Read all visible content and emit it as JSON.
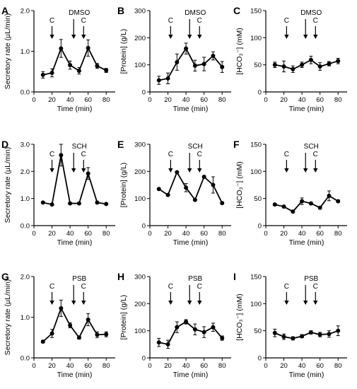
{
  "chart_data": [
    {
      "letter": "A",
      "type": "line",
      "treatment": "DMSO",
      "ylabel": "Secretory rate (µL/min)",
      "xlabel": "Time (min)",
      "ylim": [
        0,
        2.0
      ],
      "yticks": [
        "0.0",
        "1.0",
        "2.0"
      ],
      "ytickvals": [
        0,
        1,
        2
      ],
      "xlim": [
        0,
        90
      ],
      "xticks": [
        "0",
        "20",
        "40",
        "60",
        "80"
      ],
      "xtickvals": [
        0,
        20,
        40,
        60,
        80
      ],
      "x": [
        10,
        20,
        30,
        40,
        50,
        60,
        70,
        80
      ],
      "values": [
        0.42,
        0.47,
        1.07,
        0.66,
        0.52,
        1.08,
        0.64,
        0.53
      ],
      "errors": [
        0.08,
        0.1,
        0.22,
        0.1,
        0.08,
        0.2,
        0.06,
        0.05
      ],
      "c_labels": [
        "C",
        "C"
      ],
      "c_x": [
        20,
        55
      ],
      "treat_x": 44
    },
    {
      "letter": "B",
      "type": "line",
      "treatment": "DMSO",
      "ylabel": "[Protein] (g/L)",
      "xlabel": "Time (min)",
      "ylim": [
        0,
        300
      ],
      "yticks": [
        "0",
        "100",
        "200",
        "300"
      ],
      "ytickvals": [
        0,
        100,
        200,
        300
      ],
      "xlim": [
        0,
        90
      ],
      "xticks": [
        "0",
        "20",
        "40",
        "60",
        "80"
      ],
      "xtickvals": [
        0,
        20,
        40,
        60,
        80
      ],
      "x": [
        10,
        20,
        30,
        40,
        50,
        60,
        70,
        80
      ],
      "values": [
        43,
        50,
        110,
        160,
        97,
        103,
        133,
        92
      ],
      "errors": [
        15,
        20,
        30,
        20,
        20,
        25,
        15,
        20
      ],
      "c_labels": [
        "C",
        "C"
      ],
      "c_x": [
        23,
        55
      ],
      "treat_x": 44
    },
    {
      "letter": "C",
      "type": "line",
      "treatment": "DMSO",
      "ylabel": "[HCO₃⁻] (mM)",
      "xlabel": "Time (min)",
      "ylim": [
        0,
        150
      ],
      "yticks": [
        "0",
        "50",
        "100",
        "150"
      ],
      "ytickvals": [
        0,
        50,
        100,
        150
      ],
      "xlim": [
        0,
        90
      ],
      "xticks": [
        "0",
        "20",
        "40",
        "60",
        "80"
      ],
      "xtickvals": [
        0,
        20,
        40,
        60,
        80
      ],
      "x": [
        10,
        20,
        30,
        40,
        50,
        60,
        70,
        80
      ],
      "values": [
        50,
        47,
        42,
        50,
        59,
        47,
        52,
        57
      ],
      "errors": [
        5,
        10,
        6,
        5,
        7,
        7,
        4,
        5
      ],
      "c_labels": [
        "C",
        "C"
      ],
      "c_x": [
        23,
        55
      ],
      "treat_x": 44
    },
    {
      "letter": "D",
      "type": "line",
      "treatment": "SCH",
      "ylabel": "Secretory rate (µL/min)",
      "xlabel": "Time (min)",
      "ylim": [
        0,
        3.0
      ],
      "yticks": [
        "0.0",
        "1.0",
        "2.0",
        "3.0"
      ],
      "ytickvals": [
        0,
        1,
        2,
        3
      ],
      "xlim": [
        0,
        90
      ],
      "xticks": [
        "0",
        "20",
        "40",
        "60",
        "80"
      ],
      "xtickvals": [
        0,
        20,
        40,
        60,
        80
      ],
      "x": [
        10,
        20,
        30,
        40,
        50,
        60,
        70,
        80
      ],
      "values": [
        0.85,
        0.78,
        2.6,
        0.82,
        0.82,
        1.92,
        0.85,
        0.8
      ],
      "errors": [
        0.03,
        0.03,
        0.4,
        0.03,
        0.03,
        0.22,
        0.03,
        0.03
      ],
      "c_labels": [
        "C",
        "C"
      ],
      "c_x": [
        20,
        55
      ],
      "treat_x": 44
    },
    {
      "letter": "E",
      "type": "line",
      "treatment": "SCH",
      "ylabel": "[Protein] (g/L)",
      "xlabel": "Time (min)",
      "ylim": [
        0,
        300
      ],
      "yticks": [
        "0",
        "100",
        "200",
        "300"
      ],
      "ytickvals": [
        0,
        100,
        200,
        300
      ],
      "xlim": [
        0,
        90
      ],
      "xticks": [
        "0",
        "20",
        "40",
        "60",
        "80"
      ],
      "xtickvals": [
        0,
        20,
        40,
        60,
        80
      ],
      "x": [
        10,
        20,
        30,
        40,
        50,
        60,
        70,
        80
      ],
      "values": [
        135,
        113,
        197,
        140,
        95,
        180,
        150,
        83
      ],
      "errors": [
        3,
        3,
        3,
        15,
        3,
        3,
        30,
        3
      ],
      "c_labels": [
        "C",
        "C"
      ],
      "c_x": [
        23,
        55
      ],
      "treat_x": 44
    },
    {
      "letter": "F",
      "type": "line",
      "treatment": "SCH",
      "ylabel": "[HCO₃⁻] (mM)",
      "xlabel": "Time (min)",
      "ylim": [
        0,
        150
      ],
      "yticks": [
        "0",
        "50",
        "100",
        "150"
      ],
      "ytickvals": [
        0,
        50,
        100,
        150
      ],
      "xlim": [
        0,
        90
      ],
      "xticks": [
        "0",
        "20",
        "40",
        "60",
        "80"
      ],
      "xtickvals": [
        0,
        20,
        40,
        60,
        80
      ],
      "x": [
        10,
        20,
        30,
        40,
        50,
        60,
        70,
        80
      ],
      "values": [
        39,
        35,
        26,
        45,
        41,
        33,
        55,
        45
      ],
      "errors": [
        2,
        2,
        2,
        6,
        2,
        2,
        9,
        2
      ],
      "c_labels": [
        "C",
        "C"
      ],
      "c_x": [
        23,
        55
      ],
      "treat_x": 44
    },
    {
      "letter": "G",
      "type": "line",
      "treatment": "PSB",
      "ylabel": "Secretory rate (µL/min)",
      "xlabel": "Time (min)",
      "ylim": [
        0,
        2.0
      ],
      "yticks": [
        "0.0",
        "1.0",
        "2.0"
      ],
      "ytickvals": [
        0,
        1,
        2
      ],
      "xlim": [
        0,
        90
      ],
      "xticks": [
        "0",
        "20",
        "40",
        "60",
        "80"
      ],
      "xtickvals": [
        0,
        20,
        40,
        60,
        80
      ],
      "x": [
        10,
        20,
        30,
        40,
        50,
        60,
        70,
        80
      ],
      "values": [
        0.4,
        0.6,
        1.22,
        0.8,
        0.5,
        0.94,
        0.57,
        0.58
      ],
      "errors": [
        0.03,
        0.1,
        0.2,
        0.06,
        0.04,
        0.15,
        0.07,
        0.06
      ],
      "c_labels": [
        "C",
        "C"
      ],
      "c_x": [
        20,
        55
      ],
      "treat_x": 44
    },
    {
      "letter": "H",
      "type": "line",
      "treatment": "PSB",
      "ylabel": "[Protein] (g/L)",
      "xlabel": "Time (min)",
      "ylim": [
        0,
        300
      ],
      "yticks": [
        "0",
        "100",
        "200",
        "300"
      ],
      "ytickvals": [
        0,
        100,
        200,
        300
      ],
      "xlim": [
        0,
        90
      ],
      "xticks": [
        "0",
        "20",
        "40",
        "60",
        "80"
      ],
      "xtickvals": [
        0,
        20,
        40,
        60,
        80
      ],
      "x": [
        10,
        20,
        30,
        40,
        50,
        60,
        70,
        80
      ],
      "values": [
        57,
        50,
        113,
        133,
        105,
        95,
        113,
        73
      ],
      "errors": [
        15,
        15,
        20,
        8,
        20,
        20,
        15,
        8
      ],
      "c_labels": [
        "C",
        "C"
      ],
      "c_x": [
        23,
        55
      ],
      "treat_x": 44
    },
    {
      "letter": "I",
      "type": "line",
      "treatment": "PSB",
      "ylabel": "[HCO₃⁻] (mM)",
      "xlabel": "Time (min)",
      "ylim": [
        0,
        150
      ],
      "yticks": [
        "0",
        "50",
        "100",
        "150"
      ],
      "ytickvals": [
        0,
        50,
        100,
        150
      ],
      "xlim": [
        0,
        90
      ],
      "xticks": [
        "0",
        "20",
        "40",
        "60",
        "80"
      ],
      "xtickvals": [
        0,
        20,
        40,
        60,
        80
      ],
      "x": [
        10,
        20,
        30,
        40,
        50,
        60,
        70,
        80
      ],
      "values": [
        46,
        39,
        36,
        40,
        47,
        43,
        44,
        50
      ],
      "errors": [
        7,
        5,
        3,
        3,
        3,
        4,
        6,
        9
      ],
      "c_labels": [
        "C",
        "C"
      ],
      "c_x": [
        23,
        55
      ],
      "treat_x": 44
    }
  ]
}
